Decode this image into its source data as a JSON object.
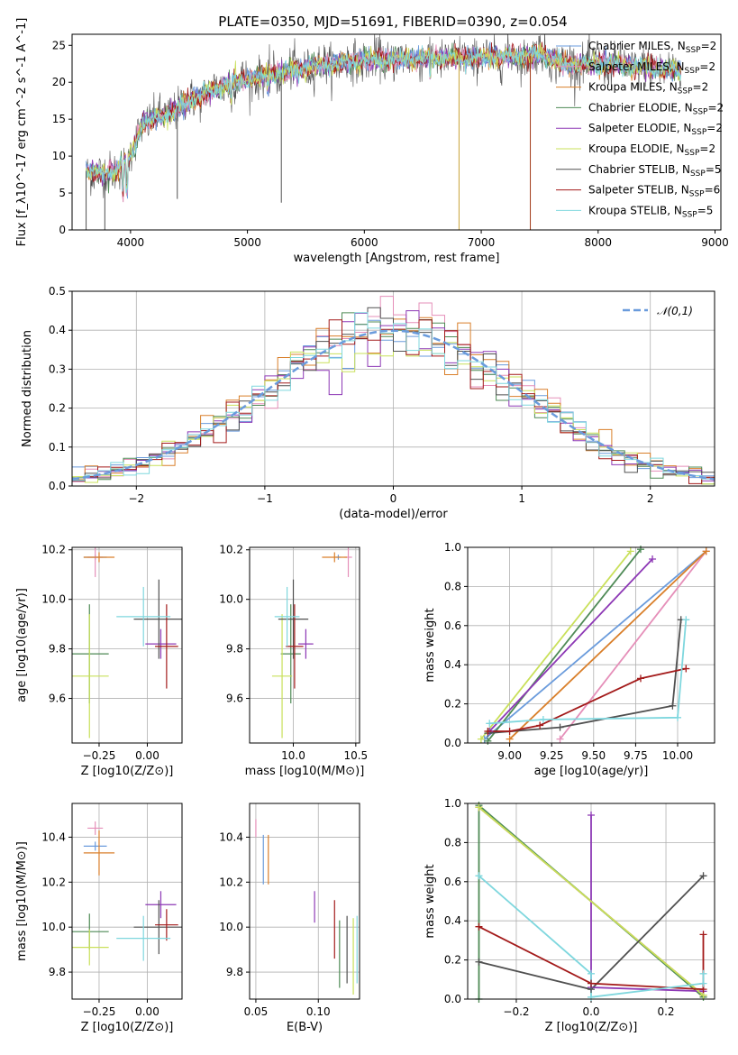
{
  "figure": {
    "title": "PLATE=0350, MJD=51691, FIBERID=0390, z=0.054"
  },
  "colors": {
    "s0": "#6a9bdc",
    "s1": "#e58fb9",
    "s2": "#d97f2a",
    "s3": "#4e8a55",
    "s4": "#8d38b5",
    "s5": "#c9e05a",
    "s6": "#505050",
    "s7": "#a31a1a",
    "s8": "#7fd7de",
    "grid": "#b0b0b0",
    "gauss": "#6a9bdc"
  },
  "chart_data": [
    {
      "id": "spectrum",
      "type": "line",
      "xlabel": "wavelength [Angstrom, rest frame]",
      "ylabel": "Flux [f_λ10^-17 erg cm^-2 s^-1 A^-1]",
      "xlim": [
        3500,
        9050
      ],
      "ylim": [
        0,
        26.5
      ],
      "xticks": [
        4000,
        5000,
        6000,
        7000,
        8000,
        9000
      ],
      "yticks": [
        0,
        5,
        10,
        15,
        20,
        25
      ],
      "grid": false,
      "legend_position": "right",
      "legend": [
        {
          "name": "Chabrier MILES",
          "nssp": "2",
          "color": "#6a9bdc"
        },
        {
          "name": "Salpeter MILES",
          "nssp": "2",
          "color": "#e58fb9"
        },
        {
          "name": "Kroupa MILES",
          "nssp": "2",
          "color": "#d97f2a"
        },
        {
          "name": "Chabrier ELODIE",
          "nssp": "2",
          "color": "#4e8a55"
        },
        {
          "name": "Salpeter ELODIE",
          "nssp": "2",
          "color": "#8d38b5"
        },
        {
          "name": "Kroupa ELODIE",
          "nssp": "2",
          "color": "#c9e05a"
        },
        {
          "name": "Chabrier STELIB",
          "nssp": "5",
          "color": "#505050"
        },
        {
          "name": "Salpeter STELIB",
          "nssp": "6",
          "color": "#a31a1a"
        },
        {
          "name": "Kroupa STELIB",
          "nssp": "5",
          "color": "#7fd7de"
        }
      ],
      "continuum": [
        [
          3620,
          8.0
        ],
        [
          3800,
          7.5
        ],
        [
          3900,
          8.5
        ],
        [
          4000,
          10.0
        ],
        [
          4100,
          14.5
        ],
        [
          4300,
          15.5
        ],
        [
          4500,
          17.5
        ],
        [
          4800,
          19.5
        ],
        [
          5000,
          20.5
        ],
        [
          5200,
          21.0
        ],
        [
          5500,
          22.0
        ],
        [
          6000,
          23.0
        ],
        [
          6500,
          23.2
        ],
        [
          7000,
          23.3
        ],
        [
          7400,
          23.5
        ],
        [
          7500,
          24.0
        ],
        [
          7700,
          22.5
        ],
        [
          8000,
          22.5
        ],
        [
          8400,
          22.0
        ],
        [
          8700,
          21.5
        ]
      ],
      "data_glitches": [
        [
          3620,
          0
        ],
        [
          3780,
          0
        ],
        [
          4400,
          4.2
        ],
        [
          5290,
          3.7
        ],
        [
          6810,
          0
        ],
        [
          7420,
          0
        ]
      ]
    },
    {
      "id": "residuals",
      "type": "area",
      "xlabel": "(data-model)/error",
      "ylabel": "Normed distribution",
      "xlim": [
        -2.5,
        2.5
      ],
      "ylim": [
        0,
        0.5
      ],
      "xticks": [
        -2,
        -1,
        0,
        1,
        2
      ],
      "yticks": [
        0.0,
        0.1,
        0.2,
        0.3,
        0.4,
        0.5
      ],
      "grid": true,
      "legend_position": "top-right",
      "legend": [
        {
          "name": "𝒩(0,1)",
          "color": "#6a9bdc"
        }
      ],
      "bin_width": 0.1
    },
    {
      "id": "age_vs_Z",
      "type": "scatter",
      "xlabel": "Z [log10(Z/Z⊙)]",
      "ylabel": "age [log10(age/yr)]",
      "xlim": [
        -0.39,
        0.18
      ],
      "ylim": [
        9.42,
        10.21
      ],
      "xticks": [
        -0.25,
        0.0
      ],
      "yticks": [
        9.6,
        9.8,
        10.0,
        10.2
      ],
      "grid": true,
      "points": [
        {
          "s": 0,
          "x": -0.27,
          "xerr": 0.06,
          "y": 10.17,
          "yerr": 0.01
        },
        {
          "s": 1,
          "x": -0.27,
          "xerr": 0.04,
          "y": 10.17,
          "yerr": 0.08
        },
        {
          "s": 2,
          "x": -0.25,
          "xerr": 0.08,
          "y": 10.17,
          "yerr": 0.02
        },
        {
          "s": 3,
          "x": -0.3,
          "xerr": 0.1,
          "y": 9.78,
          "yerr": 0.2
        },
        {
          "s": 4,
          "x": 0.07,
          "xerr": 0.08,
          "y": 9.82,
          "yerr": 0.06
        },
        {
          "s": 5,
          "x": -0.3,
          "xerr": 0.1,
          "y": 9.69,
          "yerr": 0.25
        },
        {
          "s": 6,
          "x": 0.06,
          "xerr": 0.13,
          "y": 9.92,
          "yerr": 0.16
        },
        {
          "s": 7,
          "x": 0.1,
          "xerr": 0.06,
          "y": 9.81,
          "yerr": 0.17
        },
        {
          "s": 8,
          "x": -0.02,
          "xerr": 0.14,
          "y": 9.93,
          "yerr": 0.12
        }
      ]
    },
    {
      "id": "age_vs_mass",
      "type": "scatter",
      "xlabel": "mass [log10(M/M⊙)]",
      "ylabel": "",
      "xlim": [
        9.65,
        10.53
      ],
      "ylim": [
        9.42,
        10.21
      ],
      "xticks": [
        10.0,
        10.5
      ],
      "yticks": [
        9.6,
        9.8,
        10.0,
        10.2
      ],
      "grid": true,
      "points": [
        {
          "s": 0,
          "x": 10.36,
          "xerr": 0.02,
          "y": 10.17,
          "yerr": 0.01
        },
        {
          "s": 1,
          "x": 10.44,
          "xerr": 0.03,
          "y": 10.17,
          "yerr": 0.08
        },
        {
          "s": 2,
          "x": 10.33,
          "xerr": 0.1,
          "y": 10.17,
          "yerr": 0.02
        },
        {
          "s": 3,
          "x": 9.98,
          "xerr": 0.08,
          "y": 9.78,
          "yerr": 0.2
        },
        {
          "s": 4,
          "x": 10.1,
          "xerr": 0.06,
          "y": 9.82,
          "yerr": 0.06
        },
        {
          "s": 5,
          "x": 9.91,
          "xerr": 0.08,
          "y": 9.69,
          "yerr": 0.25
        },
        {
          "s": 6,
          "x": 10.0,
          "xerr": 0.12,
          "y": 9.92,
          "yerr": 0.16
        },
        {
          "s": 7,
          "x": 10.01,
          "xerr": 0.07,
          "y": 9.81,
          "yerr": 0.17
        },
        {
          "s": 8,
          "x": 9.95,
          "xerr": 0.1,
          "y": 9.93,
          "yerr": 0.12
        }
      ]
    },
    {
      "id": "mass_weight_vs_age",
      "type": "line",
      "xlabel": "age [log10(age/yr)]",
      "ylabel": "mass weight",
      "xlim": [
        8.75,
        10.22
      ],
      "ylim": [
        0,
        1.0
      ],
      "xticks": [
        9.0,
        9.25,
        9.5,
        9.75,
        10.0
      ],
      "yticks": [
        0.0,
        0.2,
        0.4,
        0.6,
        0.8,
        1.0
      ],
      "grid": true,
      "series": [
        {
          "s": 0,
          "x": [
            8.85,
            10.17
          ],
          "y": [
            0.02,
            0.98
          ]
        },
        {
          "s": 1,
          "x": [
            9.3,
            10.17
          ],
          "y": [
            0.02,
            0.98
          ]
        },
        {
          "s": 2,
          "x": [
            9.0,
            10.17
          ],
          "y": [
            0.02,
            0.98
          ]
        },
        {
          "s": 3,
          "x": [
            8.87,
            9.78
          ],
          "y": [
            0.01,
            0.99
          ]
        },
        {
          "s": 4,
          "x": [
            8.88,
            9.85
          ],
          "y": [
            0.06,
            0.94
          ]
        },
        {
          "s": 5,
          "x": [
            8.83,
            9.72
          ],
          "y": [
            0.02,
            0.98
          ]
        },
        {
          "s": 6,
          "x": [
            8.87,
            9.3,
            9.97,
            10.02
          ],
          "y": [
            0.05,
            0.08,
            0.19,
            0.63
          ]
        },
        {
          "s": 7,
          "x": [
            8.87,
            9.0,
            9.18,
            9.78,
            10.05
          ],
          "y": [
            0.06,
            0.06,
            0.09,
            0.33,
            0.38
          ]
        },
        {
          "s": 8,
          "x": [
            8.88,
            9.2,
            10.0,
            10.05
          ],
          "y": [
            0.1,
            0.12,
            0.13,
            0.63
          ]
        }
      ]
    },
    {
      "id": "mass_vs_Z",
      "type": "scatter",
      "xlabel": "Z [log10(Z/Z⊙)]",
      "ylabel": "mass [log10(M/M⊙)]",
      "xlim": [
        -0.39,
        0.18
      ],
      "ylim": [
        9.68,
        10.55
      ],
      "xticks": [
        -0.25,
        0.0
      ],
      "yticks": [
        9.8,
        10.0,
        10.2,
        10.4
      ],
      "grid": true,
      "points": [
        {
          "s": 0,
          "x": -0.27,
          "xerr": 0.06,
          "y": 10.36,
          "yerr": 0.02
        },
        {
          "s": 1,
          "x": -0.27,
          "xerr": 0.04,
          "y": 10.44,
          "yerr": 0.03
        },
        {
          "s": 2,
          "x": -0.25,
          "xerr": 0.08,
          "y": 10.33,
          "yerr": 0.1
        },
        {
          "s": 3,
          "x": -0.3,
          "xerr": 0.1,
          "y": 9.98,
          "yerr": 0.08
        },
        {
          "s": 4,
          "x": 0.07,
          "xerr": 0.08,
          "y": 10.1,
          "yerr": 0.06
        },
        {
          "s": 5,
          "x": -0.3,
          "xerr": 0.1,
          "y": 9.91,
          "yerr": 0.08
        },
        {
          "s": 6,
          "x": 0.06,
          "xerr": 0.13,
          "y": 10.0,
          "yerr": 0.12
        },
        {
          "s": 7,
          "x": 0.1,
          "xerr": 0.06,
          "y": 10.01,
          "yerr": 0.07
        },
        {
          "s": 8,
          "x": -0.02,
          "xerr": 0.14,
          "y": 9.95,
          "yerr": 0.1
        }
      ]
    },
    {
      "id": "mass_vs_EBV",
      "type": "scatter",
      "xlabel": "E(B-V)",
      "ylabel": "",
      "xlim": [
        0.045,
        0.133
      ],
      "ylim": [
        9.68,
        10.55
      ],
      "xticks": [
        0.05,
        0.1
      ],
      "yticks": [
        9.8,
        10.0,
        10.2,
        10.4
      ],
      "grid": true,
      "points": [
        {
          "s": 0,
          "x": 0.056,
          "y": 10.3,
          "yerr": 0.11
        },
        {
          "s": 1,
          "x": 0.05,
          "y": 10.44,
          "yerr": 0.04
        },
        {
          "s": 2,
          "x": 0.06,
          "y": 10.3,
          "yerr": 0.11
        },
        {
          "s": 3,
          "x": 0.117,
          "y": 9.88,
          "yerr": 0.15
        },
        {
          "s": 4,
          "x": 0.097,
          "y": 10.09,
          "yerr": 0.07
        },
        {
          "s": 5,
          "x": 0.128,
          "y": 9.87,
          "yerr": 0.17
        },
        {
          "s": 6,
          "x": 0.123,
          "y": 9.9,
          "yerr": 0.15
        },
        {
          "s": 7,
          "x": 0.113,
          "y": 9.99,
          "yerr": 0.13
        },
        {
          "s": 8,
          "x": 0.131,
          "y": 9.9,
          "yerr": 0.15
        }
      ]
    },
    {
      "id": "mass_weight_vs_Z",
      "type": "line",
      "xlabel": "Z [log10(Z/Z⊙)]",
      "ylabel": "mass weight",
      "xlim": [
        -0.33,
        0.33
      ],
      "ylim": [
        0,
        1.0
      ],
      "xticks": [
        -0.2,
        0.0,
        0.2
      ],
      "yticks": [
        0.0,
        0.2,
        0.4,
        0.6,
        0.8,
        1.0
      ],
      "grid": true,
      "series": [
        {
          "s": 0,
          "x": [
            -0.3,
            0.3
          ],
          "y": [
            0.98,
            0.02
          ]
        },
        {
          "s": 1,
          "x": [
            -0.3,
            0.3
          ],
          "y": [
            0.98,
            0.02
          ]
        },
        {
          "s": 2,
          "x": [
            -0.3,
            0.3
          ],
          "y": [
            0.98,
            0.02
          ]
        },
        {
          "s": 3,
          "x": [
            -0.3,
            -0.3,
            0.3
          ],
          "y": [
            0.0,
            0.99,
            0.01
          ]
        },
        {
          "s": 4,
          "x": [
            0.0,
            0.0,
            0.3
          ],
          "y": [
            0.94,
            0.06,
            0.04
          ]
        },
        {
          "s": 5,
          "x": [
            -0.3,
            0.3
          ],
          "y": [
            0.98,
            0.02
          ]
        },
        {
          "s": 6,
          "x": [
            -0.3,
            0.0,
            0.3
          ],
          "y": [
            0.19,
            0.05,
            0.63
          ]
        },
        {
          "s": 7,
          "x": [
            -0.3,
            0.0,
            0.3,
            0.3
          ],
          "y": [
            0.37,
            0.08,
            0.05,
            0.33
          ]
        },
        {
          "s": 8,
          "x": [
            -0.3,
            0.0,
            0.0,
            0.3,
            0.3
          ],
          "y": [
            0.63,
            0.13,
            0.01,
            0.08,
            0.13
          ]
        }
      ]
    }
  ]
}
